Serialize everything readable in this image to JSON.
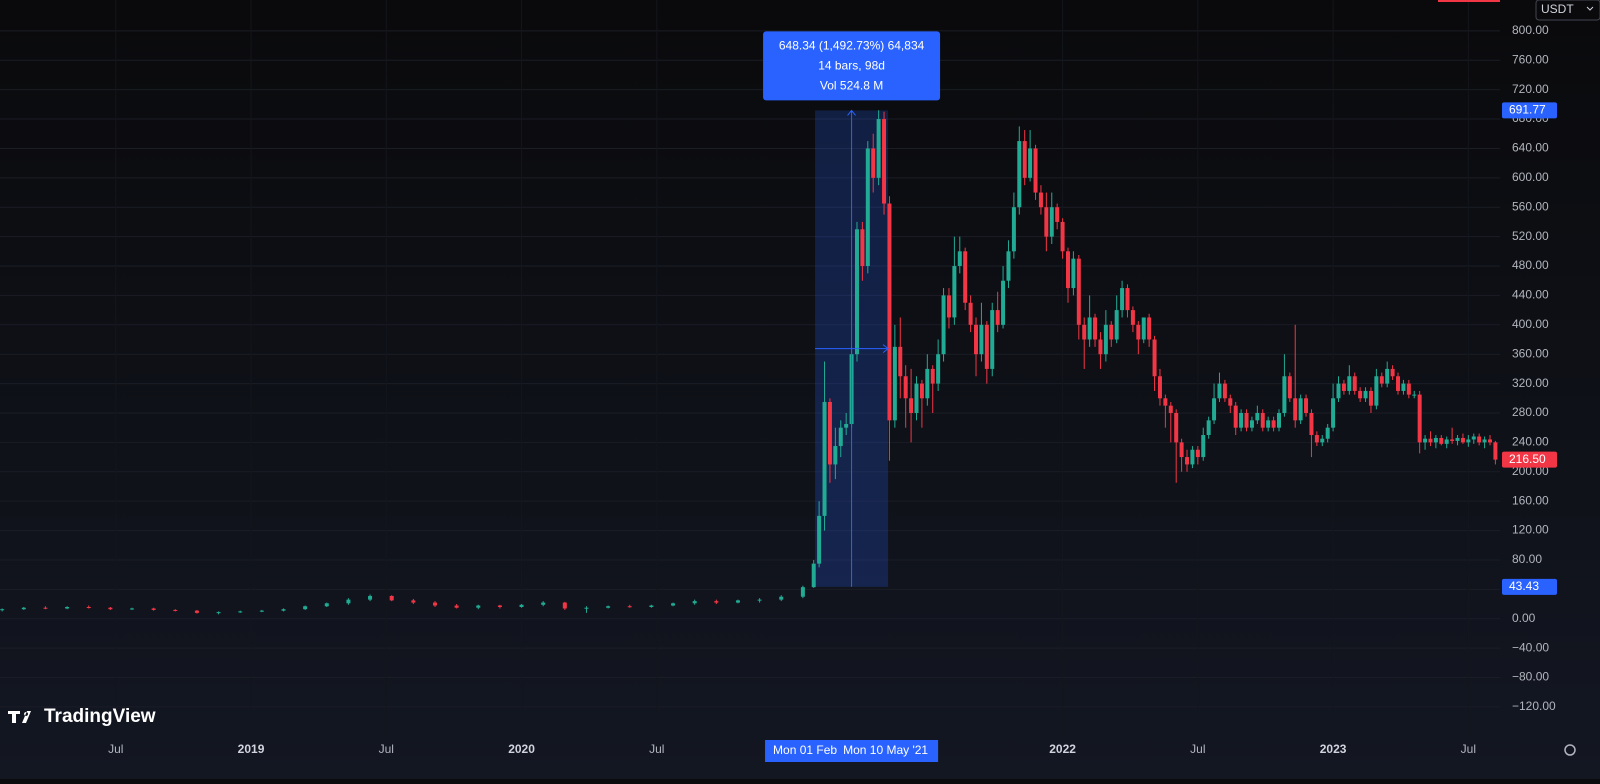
{
  "chart_data": {
    "type": "candlestick",
    "currency": "USDT",
    "brand": "TradingView",
    "up_color": "#22ab94",
    "down_color": "#f23645",
    "grid": true,
    "xlim": [
      2018.072,
      2023.617
    ],
    "xticks": [
      {
        "value": 2018.5,
        "label": "Jul"
      },
      2019,
      {
        "value": 2019.5,
        "label": "Jul"
      },
      2020,
      {
        "value": 2020.5,
        "label": "Jul"
      },
      2022,
      {
        "value": 2022.5,
        "label": "Jul"
      },
      2023,
      {
        "value": 2023.5,
        "label": "Jul"
      }
    ],
    "ylim": [
      -165,
      842
    ],
    "yticks": [
      {
        "value": -120,
        "label": "−120.00"
      },
      {
        "value": -80,
        "label": "−80.00"
      },
      {
        "value": -40,
        "label": "−40.00"
      },
      {
        "value": 0,
        "label": "0.00"
      },
      {
        "value": 40,
        "label": "40.00"
      },
      {
        "value": 80,
        "label": "80.00"
      },
      {
        "value": 120,
        "label": "120.00"
      },
      {
        "value": 160,
        "label": "160.00"
      },
      {
        "value": 200,
        "label": "200.00"
      },
      {
        "value": 240,
        "label": "240.00"
      },
      {
        "value": 280,
        "label": "280.00"
      },
      {
        "value": 320,
        "label": "320.00"
      },
      {
        "value": 360,
        "label": "360.00"
      },
      {
        "value": 400,
        "label": "400.00"
      },
      {
        "value": 440,
        "label": "440.00"
      },
      {
        "value": 480,
        "label": "480.00"
      },
      {
        "value": 520,
        "label": "520.00"
      },
      {
        "value": 560,
        "label": "560.00"
      },
      {
        "value": 600,
        "label": "600.00"
      },
      {
        "value": 640,
        "label": "640.00"
      },
      {
        "value": 680,
        "label": "680.00"
      },
      {
        "value": 720,
        "label": "720.00"
      },
      {
        "value": 760,
        "label": "760.00"
      },
      {
        "value": 800,
        "label": "800.00"
      }
    ],
    "last_price": {
      "value": 216.5,
      "label": "216.50"
    },
    "measure": {
      "x": [
        {
          "value": 2021.085,
          "label": "Mon 01 Feb"
        },
        {
          "value": 2021.355,
          "label": "Mon 10 May '21"
        }
      ],
      "y": [
        {
          "value": 43.43,
          "label": "43.43"
        },
        {
          "value": 691.77,
          "label": "691.77"
        }
      ],
      "tooltip": [
        "648.34 (1,492.73%) 64,834",
        "14 bars, 98d",
        "Vol 524.8 M"
      ]
    },
    "x": [
      2018.08,
      2018.16,
      2018.24,
      2018.32,
      2018.4,
      2018.48,
      2018.56,
      2018.64,
      2018.72,
      2018.8,
      2018.88,
      2018.96,
      2019.04,
      2019.12,
      2019.2,
      2019.28,
      2019.36,
      2019.44,
      2019.52,
      2019.6,
      2019.68,
      2019.76,
      2019.84,
      2019.92,
      2020.0,
      2020.08,
      2020.16,
      2020.24,
      2020.32,
      2020.4,
      2020.48,
      2020.56,
      2020.64,
      2020.72,
      2020.8,
      2020.88,
      2020.96,
      2021.04,
      2021.08,
      2021.1,
      2021.12,
      2021.14,
      2021.16,
      2021.18,
      2021.2,
      2021.22,
      2021.24,
      2021.26,
      2021.28,
      2021.3,
      2021.32,
      2021.34,
      2021.36,
      2021.38,
      2021.4,
      2021.42,
      2021.44,
      2021.46,
      2021.48,
      2021.5,
      2021.52,
      2021.54,
      2021.56,
      2021.58,
      2021.6,
      2021.62,
      2021.64,
      2021.66,
      2021.68,
      2021.7,
      2021.72,
      2021.74,
      2021.76,
      2021.78,
      2021.8,
      2021.82,
      2021.84,
      2021.86,
      2021.88,
      2021.9,
      2021.92,
      2021.94,
      2021.96,
      2021.98,
      2022.0,
      2022.02,
      2022.04,
      2022.06,
      2022.08,
      2022.1,
      2022.12,
      2022.14,
      2022.16,
      2022.18,
      2022.2,
      2022.22,
      2022.24,
      2022.26,
      2022.28,
      2022.3,
      2022.32,
      2022.34,
      2022.36,
      2022.38,
      2022.4,
      2022.42,
      2022.44,
      2022.46,
      2022.48,
      2022.5,
      2022.52,
      2022.54,
      2022.56,
      2022.58,
      2022.6,
      2022.62,
      2022.64,
      2022.66,
      2022.68,
      2022.7,
      2022.72,
      2022.74,
      2022.76,
      2022.78,
      2022.8,
      2022.82,
      2022.84,
      2022.86,
      2022.88,
      2022.9,
      2022.92,
      2022.94,
      2022.96,
      2022.98,
      2023.0,
      2023.02,
      2023.04,
      2023.06,
      2023.08,
      2023.1,
      2023.12,
      2023.14,
      2023.16,
      2023.18,
      2023.2,
      2023.22,
      2023.24,
      2023.26,
      2023.28,
      2023.3,
      2023.32,
      2023.34,
      2023.36,
      2023.38,
      2023.4,
      2023.42,
      2023.44,
      2023.46,
      2023.48,
      2023.5,
      2023.52,
      2023.54,
      2023.56,
      2023.58,
      2023.6
    ],
    "ohlc": [
      [
        12,
        14,
        10,
        13
      ],
      [
        13,
        16,
        12,
        15
      ],
      [
        15,
        17,
        13,
        14
      ],
      [
        14,
        17,
        13,
        16
      ],
      [
        16,
        18,
        14,
        15
      ],
      [
        15,
        16,
        12,
        13
      ],
      [
        13,
        15,
        12,
        14
      ],
      [
        14,
        15,
        11,
        12
      ],
      [
        12,
        13,
        10,
        11
      ],
      [
        11,
        12,
        7,
        8
      ],
      [
        8,
        10,
        6,
        9
      ],
      [
        9,
        11,
        8,
        10
      ],
      [
        10,
        12,
        9,
        11
      ],
      [
        11,
        14,
        10,
        13
      ],
      [
        13,
        18,
        12,
        17
      ],
      [
        17,
        22,
        16,
        21
      ],
      [
        21,
        28,
        19,
        26
      ],
      [
        26,
        33,
        24,
        31
      ],
      [
        31,
        32,
        24,
        25
      ],
      [
        25,
        27,
        20,
        22
      ],
      [
        22,
        24,
        16,
        18
      ],
      [
        18,
        20,
        14,
        15
      ],
      [
        15,
        19,
        13,
        18
      ],
      [
        18,
        19,
        14,
        16
      ],
      [
        16,
        20,
        15,
        19
      ],
      [
        19,
        24,
        17,
        22
      ],
      [
        22,
        23,
        12,
        14
      ],
      [
        14,
        17,
        8,
        15
      ],
      [
        15,
        18,
        14,
        17
      ],
      [
        17,
        19,
        15,
        16
      ],
      [
        16,
        19,
        15,
        18
      ],
      [
        18,
        22,
        17,
        21
      ],
      [
        21,
        26,
        19,
        24
      ],
      [
        24,
        26,
        20,
        22
      ],
      [
        22,
        26,
        21,
        25
      ],
      [
        25,
        28,
        22,
        26
      ],
      [
        26,
        32,
        24,
        30
      ],
      [
        30,
        45,
        28,
        43
      ],
      [
        43,
        80,
        42,
        75
      ],
      [
        75,
        160,
        70,
        140
      ],
      [
        140,
        350,
        120,
        295
      ],
      [
        295,
        300,
        185,
        210
      ],
      [
        210,
        260,
        190,
        235
      ],
      [
        235,
        270,
        220,
        260
      ],
      [
        260,
        280,
        250,
        265
      ],
      [
        265,
        370,
        260,
        360
      ],
      [
        360,
        540,
        350,
        530
      ],
      [
        530,
        540,
        460,
        480
      ],
      [
        480,
        650,
        470,
        640
      ],
      [
        640,
        660,
        580,
        600
      ],
      [
        600,
        692,
        590,
        680
      ],
      [
        680,
        690,
        550,
        565
      ],
      [
        565,
        575,
        215,
        270
      ],
      [
        270,
        400,
        260,
        370
      ],
      [
        370,
        410,
        300,
        330
      ],
      [
        330,
        345,
        260,
        300
      ],
      [
        300,
        340,
        240,
        280
      ],
      [
        280,
        330,
        270,
        320
      ],
      [
        320,
        325,
        260,
        300
      ],
      [
        300,
        360,
        290,
        340
      ],
      [
        340,
        345,
        280,
        320
      ],
      [
        320,
        380,
        310,
        360
      ],
      [
        360,
        450,
        350,
        440
      ],
      [
        440,
        450,
        395,
        410
      ],
      [
        410,
        520,
        400,
        480
      ],
      [
        480,
        520,
        470,
        500
      ],
      [
        500,
        505,
        420,
        430
      ],
      [
        430,
        440,
        390,
        400
      ],
      [
        400,
        410,
        330,
        360
      ],
      [
        360,
        430,
        350,
        400
      ],
      [
        400,
        405,
        320,
        340
      ],
      [
        340,
        430,
        330,
        420
      ],
      [
        420,
        445,
        390,
        400
      ],
      [
        400,
        480,
        395,
        460
      ],
      [
        460,
        515,
        450,
        500
      ],
      [
        500,
        580,
        490,
        560
      ],
      [
        560,
        670,
        550,
        650
      ],
      [
        650,
        665,
        590,
        600
      ],
      [
        600,
        665,
        595,
        640
      ],
      [
        640,
        645,
        570,
        580
      ],
      [
        580,
        590,
        550,
        560
      ],
      [
        560,
        580,
        500,
        520
      ],
      [
        520,
        580,
        510,
        560
      ],
      [
        560,
        565,
        530,
        540
      ],
      [
        540,
        545,
        490,
        500
      ],
      [
        500,
        505,
        430,
        450
      ],
      [
        450,
        500,
        440,
        490
      ],
      [
        490,
        495,
        380,
        400
      ],
      [
        400,
        410,
        340,
        380
      ],
      [
        380,
        440,
        370,
        410
      ],
      [
        410,
        415,
        370,
        380
      ],
      [
        380,
        390,
        340,
        360
      ],
      [
        360,
        420,
        350,
        400
      ],
      [
        400,
        405,
        370,
        380
      ],
      [
        380,
        440,
        375,
        420
      ],
      [
        420,
        460,
        410,
        450
      ],
      [
        450,
        455,
        410,
        420
      ],
      [
        420,
        425,
        390,
        400
      ],
      [
        400,
        405,
        360,
        380
      ],
      [
        380,
        410,
        375,
        410
      ],
      [
        410,
        415,
        370,
        380
      ],
      [
        380,
        385,
        310,
        330
      ],
      [
        330,
        340,
        290,
        300
      ],
      [
        300,
        305,
        260,
        290
      ],
      [
        290,
        295,
        240,
        280
      ],
      [
        280,
        285,
        185,
        240
      ],
      [
        240,
        245,
        200,
        220
      ],
      [
        220,
        230,
        200,
        210
      ],
      [
        210,
        235,
        205,
        230
      ],
      [
        230,
        235,
        210,
        220
      ],
      [
        220,
        260,
        215,
        250
      ],
      [
        250,
        275,
        245,
        270
      ],
      [
        270,
        320,
        265,
        300
      ],
      [
        300,
        335,
        295,
        320
      ],
      [
        320,
        325,
        295,
        300
      ],
      [
        300,
        305,
        280,
        290
      ],
      [
        290,
        295,
        250,
        260
      ],
      [
        260,
        285,
        255,
        280
      ],
      [
        280,
        285,
        255,
        260
      ],
      [
        260,
        275,
        255,
        270
      ],
      [
        270,
        290,
        265,
        280
      ],
      [
        280,
        285,
        255,
        260
      ],
      [
        260,
        275,
        255,
        270
      ],
      [
        270,
        275,
        255,
        260
      ],
      [
        260,
        285,
        255,
        280
      ],
      [
        280,
        360,
        275,
        330
      ],
      [
        330,
        335,
        295,
        300
      ],
      [
        300,
        400,
        260,
        270
      ],
      [
        270,
        305,
        265,
        300
      ],
      [
        300,
        305,
        275,
        280
      ],
      [
        280,
        285,
        220,
        250
      ],
      [
        250,
        255,
        235,
        240
      ],
      [
        240,
        250,
        235,
        245
      ],
      [
        245,
        265,
        240,
        260
      ],
      [
        260,
        320,
        255,
        300
      ],
      [
        300,
        330,
        295,
        320
      ],
      [
        320,
        325,
        305,
        310
      ],
      [
        310,
        345,
        305,
        330
      ],
      [
        330,
        335,
        305,
        310
      ],
      [
        310,
        315,
        295,
        300
      ],
      [
        300,
        315,
        295,
        310
      ],
      [
        310,
        315,
        280,
        290
      ],
      [
        290,
        340,
        285,
        330
      ],
      [
        330,
        335,
        315,
        320
      ],
      [
        320,
        350,
        315,
        340
      ],
      [
        340,
        345,
        325,
        330
      ],
      [
        330,
        335,
        305,
        310
      ],
      [
        310,
        325,
        305,
        320
      ],
      [
        320,
        325,
        300,
        305
      ],
      [
        305,
        310,
        300,
        305
      ],
      [
        305,
        310,
        225,
        240
      ],
      [
        240,
        250,
        230,
        245
      ],
      [
        245,
        255,
        235,
        240
      ],
      [
        240,
        250,
        232,
        246
      ],
      [
        246,
        250,
        236,
        238
      ],
      [
        238,
        248,
        232,
        244
      ],
      [
        244,
        260,
        238,
        242
      ],
      [
        242,
        250,
        236,
        246
      ],
      [
        246,
        252,
        238,
        240
      ],
      [
        240,
        250,
        234,
        244
      ],
      [
        244,
        252,
        238,
        248
      ],
      [
        248,
        252,
        236,
        240
      ],
      [
        240,
        248,
        232,
        244
      ],
      [
        244,
        250,
        236,
        240
      ],
      [
        240,
        242,
        210,
        216.5
      ]
    ]
  }
}
